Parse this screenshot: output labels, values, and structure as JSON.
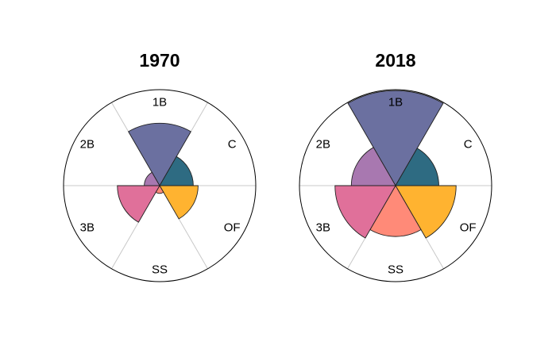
{
  "chart_data": [
    {
      "type": "polar-bar",
      "title": "1970",
      "categories": [
        "1B",
        "C",
        "OF",
        "SS",
        "3B",
        "2B"
      ],
      "values": [
        0.65,
        0.35,
        0.4,
        0.08,
        0.44,
        0.16
      ],
      "rmax": 1.0,
      "grid": true
    },
    {
      "type": "polar-bar",
      "title": "2018",
      "categories": [
        "1B",
        "C",
        "OF",
        "SS",
        "3B",
        "2B"
      ],
      "values": [
        0.99,
        0.45,
        0.63,
        0.53,
        0.63,
        0.46
      ],
      "rmax": 1.0,
      "grid": true
    }
  ],
  "colors": {
    "1B": "#6b70a0",
    "C": "#2e6b82",
    "OF": "#ffb330",
    "SS": "#ff8a78",
    "3B": "#e0709a",
    "2B": "#a878b0"
  }
}
